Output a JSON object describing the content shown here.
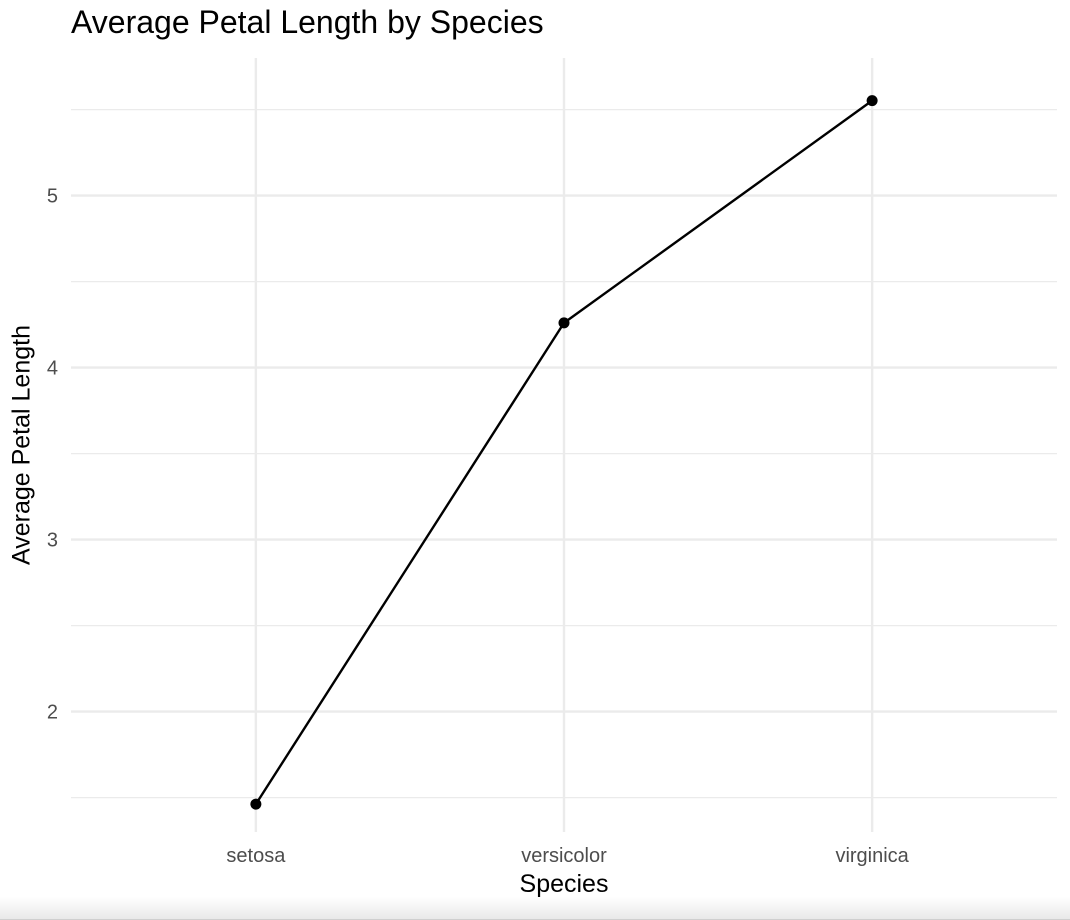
{
  "chart_data": {
    "type": "line",
    "title": "Average Petal Length by Species",
    "xlabel": "Species",
    "ylabel": "Average Petal Length",
    "categories": [
      "setosa",
      "versicolor",
      "virginica"
    ],
    "series": [
      {
        "values": [
          1.462,
          4.26,
          5.552
        ]
      }
    ],
    "ylim": [
      1.3,
      5.8
    ],
    "yticks": [
      2,
      3,
      4,
      5
    ],
    "yticks_labels": [
      "2",
      "3",
      "4",
      "5"
    ],
    "ytick_minor": [
      1.5,
      2.5,
      3.5,
      4.5,
      5.5
    ],
    "grid": true,
    "line_color": "#000000",
    "grid_color": "#ebebeb",
    "axis_text_color": "#4d4d4d"
  }
}
